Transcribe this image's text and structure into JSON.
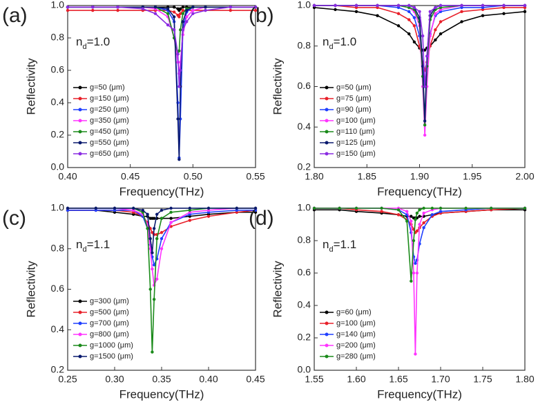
{
  "chart_data": [
    {
      "type": "line",
      "panel_label": "(a)",
      "annotation": [
        "n",
        "d",
        "=1.0"
      ],
      "x_label": "Frequency(THz)",
      "y_label": "Reflectivity",
      "legend": "lower left",
      "xlim": [
        0.4,
        0.55
      ],
      "xticks": [
        {
          "value": 0.4,
          "label": "0.40"
        },
        0.45,
        {
          "value": 0.5,
          "label": "0.50"
        },
        0.55
      ],
      "ylim": [
        0.0,
        1.0
      ],
      "yticks": [
        {
          "value": 0.0,
          "label": "0.0"
        },
        0.2,
        0.4,
        0.6,
        0.8,
        {
          "value": 1.0,
          "label": "1.0"
        }
      ],
      "x": [
        0.4,
        0.42,
        0.44,
        0.46,
        0.47,
        0.48,
        0.485,
        0.488,
        0.489,
        0.49,
        0.492,
        0.495,
        0.5,
        0.51,
        0.53,
        0.55
      ],
      "series": [
        {
          "name": "g=50 (μm)",
          "color": "#000000",
          "values": [
            0.99,
            0.99,
            0.99,
            0.99,
            0.99,
            0.99,
            0.99,
            0.98,
            0.97,
            0.98,
            0.99,
            0.99,
            0.99,
            0.99,
            0.99,
            0.99
          ]
        },
        {
          "name": "g=150 (μm)",
          "color": "#e8202a",
          "values": [
            0.97,
            0.97,
            0.97,
            0.97,
            0.97,
            0.97,
            0.96,
            0.94,
            0.93,
            0.95,
            0.97,
            0.97,
            0.97,
            0.97,
            0.97,
            0.97
          ]
        },
        {
          "name": "g=250 (μm)",
          "color": "#1f3fff",
          "values": [
            0.99,
            0.99,
            0.99,
            0.99,
            0.99,
            0.97,
            0.9,
            0.4,
            0.06,
            0.3,
            0.85,
            0.96,
            0.99,
            0.99,
            0.99,
            0.99
          ]
        },
        {
          "name": "g=350 (μm)",
          "color": "#ff33ff",
          "values": [
            0.99,
            0.99,
            0.99,
            0.99,
            0.98,
            0.93,
            0.8,
            0.65,
            0.58,
            0.65,
            0.82,
            0.93,
            0.97,
            0.99,
            0.99,
            0.99
          ]
        },
        {
          "name": "g=450 (μm)",
          "color": "#1a8a1a",
          "values": [
            0.99,
            0.99,
            0.99,
            0.99,
            0.99,
            0.95,
            0.8,
            0.7,
            0.72,
            0.85,
            0.95,
            0.98,
            0.99,
            0.99,
            0.99,
            0.99
          ]
        },
        {
          "name": "g=550 (μm)",
          "color": "#0a1a6e",
          "values": [
            0.99,
            0.99,
            0.99,
            0.99,
            0.99,
            0.98,
            0.93,
            0.3,
            0.05,
            0.5,
            0.9,
            0.97,
            0.99,
            0.99,
            0.99,
            0.99
          ]
        },
        {
          "name": "g=650 (μm)",
          "color": "#8a2be2",
          "values": [
            0.99,
            0.99,
            0.99,
            0.98,
            0.95,
            0.88,
            0.85,
            0.7,
            0.5,
            0.6,
            0.85,
            0.9,
            0.95,
            0.97,
            0.99,
            0.99
          ]
        }
      ]
    },
    {
      "type": "line",
      "panel_label": "(b)",
      "annotation": [
        "n",
        "d",
        "=1.0"
      ],
      "x_label": "Frequency(THz)",
      "y_label": "Reflectivity",
      "legend": "lower left",
      "xlim": [
        1.8,
        2.0
      ],
      "xticks": [
        {
          "value": 1.8,
          "label": "1.80"
        },
        1.85,
        {
          "value": 1.9,
          "label": "1.90"
        },
        1.95,
        {
          "value": 2.0,
          "label": "2.00"
        }
      ],
      "ylim": [
        0.2,
        1.0
      ],
      "yticks": [
        0.2,
        0.4,
        0.6,
        0.8,
        {
          "value": 1.0,
          "label": "1.0"
        }
      ],
      "x": [
        1.8,
        1.82,
        1.84,
        1.86,
        1.88,
        1.89,
        1.895,
        1.9,
        1.903,
        1.905,
        1.907,
        1.91,
        1.915,
        1.92,
        1.94,
        1.96,
        1.98,
        2.0
      ],
      "series": [
        {
          "name": "g=50 (μm)",
          "color": "#000000",
          "values": [
            0.99,
            0.98,
            0.97,
            0.95,
            0.9,
            0.86,
            0.82,
            0.79,
            0.78,
            0.78,
            0.79,
            0.8,
            0.83,
            0.86,
            0.92,
            0.95,
            0.96,
            0.97
          ]
        },
        {
          "name": "g=75 (μm)",
          "color": "#e8202a",
          "values": [
            1.0,
            1.0,
            0.99,
            0.99,
            0.96,
            0.93,
            0.9,
            0.8,
            0.72,
            0.68,
            0.72,
            0.8,
            0.88,
            0.92,
            0.97,
            0.98,
            0.99,
            0.99
          ]
        },
        {
          "name": "g=90 (μm)",
          "color": "#1f3fff",
          "values": [
            1.0,
            1.0,
            1.0,
            1.0,
            0.99,
            0.97,
            0.94,
            0.85,
            0.7,
            0.6,
            0.7,
            0.86,
            0.95,
            0.97,
            0.99,
            0.99,
            1.0,
            1.0
          ]
        },
        {
          "name": "g=100 (μm)",
          "color": "#ff33ff",
          "values": [
            1.0,
            1.0,
            1.0,
            1.0,
            1.0,
            0.99,
            0.97,
            0.9,
            0.6,
            0.36,
            0.6,
            0.85,
            0.96,
            0.98,
            1.0,
            1.0,
            1.0,
            1.0
          ]
        },
        {
          "name": "g=110 (μm)",
          "color": "#1a8a1a",
          "values": [
            1.0,
            1.0,
            1.0,
            1.0,
            1.0,
            0.99,
            0.98,
            0.92,
            0.65,
            0.41,
            0.7,
            0.93,
            0.98,
            0.99,
            1.0,
            1.0,
            1.0,
            1.0
          ]
        },
        {
          "name": "g=125 (μm)",
          "color": "#0a1a6e",
          "values": [
            1.0,
            1.0,
            1.0,
            1.0,
            1.0,
            1.0,
            0.99,
            0.94,
            0.7,
            0.43,
            0.75,
            0.95,
            0.99,
            1.0,
            1.0,
            1.0,
            1.0,
            1.0
          ]
        },
        {
          "name": "g=150 (μm)",
          "color": "#8a2be2",
          "values": [
            1.0,
            1.0,
            1.0,
            1.0,
            1.0,
            1.0,
            0.99,
            0.97,
            0.85,
            0.6,
            0.75,
            0.97,
            0.99,
            1.0,
            1.0,
            1.0,
            1.0,
            1.0
          ]
        }
      ]
    },
    {
      "type": "line",
      "panel_label": "(c)",
      "annotation": [
        "n",
        "d",
        "=1.1"
      ],
      "x_label": "Frequency(THz)",
      "y_label": "Reflectivity",
      "legend": "lower left",
      "xlim": [
        0.25,
        0.45
      ],
      "xticks": [
        0.25,
        {
          "value": 0.3,
          "label": "0.30"
        },
        0.35,
        {
          "value": 0.4,
          "label": "0.40"
        },
        0.45
      ],
      "ylim": [
        0.2,
        1.0
      ],
      "yticks": [
        0.2,
        0.4,
        0.6,
        0.8,
        {
          "value": 1.0,
          "label": "1.0"
        }
      ],
      "x": [
        0.25,
        0.28,
        0.3,
        0.32,
        0.33,
        0.335,
        0.338,
        0.34,
        0.342,
        0.345,
        0.35,
        0.36,
        0.38,
        0.4,
        0.43,
        0.45
      ],
      "series": [
        {
          "name": "g=300 (μm)",
          "color": "#000000",
          "values": [
            0.99,
            0.99,
            0.98,
            0.97,
            0.96,
            0.96,
            0.95,
            0.95,
            0.95,
            0.95,
            0.95,
            0.95,
            0.96,
            0.97,
            0.98,
            0.98
          ]
        },
        {
          "name": "g=500 (μm)",
          "color": "#e8202a",
          "values": [
            0.99,
            0.99,
            0.99,
            0.98,
            0.96,
            0.93,
            0.9,
            0.88,
            0.87,
            0.87,
            0.88,
            0.91,
            0.94,
            0.96,
            0.98,
            0.99
          ]
        },
        {
          "name": "g=700 (μm)",
          "color": "#1f3fff",
          "values": [
            0.99,
            0.99,
            0.99,
            0.99,
            0.96,
            0.9,
            0.82,
            0.76,
            0.72,
            0.75,
            0.85,
            0.93,
            0.97,
            0.98,
            0.99,
            0.99
          ]
        },
        {
          "name": "g=800 (μm)",
          "color": "#ff33ff",
          "values": [
            1.0,
            1.0,
            1.0,
            0.99,
            0.97,
            0.92,
            0.8,
            0.7,
            0.62,
            0.65,
            0.8,
            0.93,
            0.98,
            0.99,
            1.0,
            1.0
          ]
        },
        {
          "name": "g=1000 (μm)",
          "color": "#1a8a1a",
          "values": [
            1.0,
            1.0,
            1.0,
            1.0,
            0.98,
            0.9,
            0.6,
            0.29,
            0.55,
            0.85,
            0.95,
            0.98,
            0.99,
            1.0,
            1.0,
            1.0
          ]
        },
        {
          "name": "g=1500 (μm)",
          "color": "#0a1a6e",
          "values": [
            1.0,
            1.0,
            1.0,
            1.0,
            0.99,
            0.97,
            0.85,
            0.78,
            0.9,
            0.97,
            0.99,
            1.0,
            1.0,
            1.0,
            1.0,
            1.0
          ]
        }
      ]
    },
    {
      "type": "line",
      "panel_label": "(d)",
      "annotation": [
        "n",
        "d",
        "=1.1"
      ],
      "x_label": "Frequency(THz)",
      "y_label": "Reflectivity",
      "legend": "lower left",
      "xlim": [
        1.55,
        1.8
      ],
      "xticks": [
        1.55,
        {
          "value": 1.6,
          "label": "1.60"
        },
        1.65,
        {
          "value": 1.7,
          "label": "1.70"
        },
        1.75,
        {
          "value": 1.8,
          "label": "1.80"
        }
      ],
      "ylim": [
        0.0,
        1.0
      ],
      "yticks": [
        {
          "value": 0.0,
          "label": "0.0"
        },
        0.2,
        0.4,
        0.6,
        0.8,
        {
          "value": 1.0,
          "label": "1.0"
        }
      ],
      "x": [
        1.55,
        1.58,
        1.6,
        1.63,
        1.65,
        1.66,
        1.665,
        1.668,
        1.67,
        1.672,
        1.675,
        1.68,
        1.69,
        1.7,
        1.73,
        1.76,
        1.8
      ],
      "series": [
        {
          "name": "g=60 (μm)",
          "color": "#000000",
          "values": [
            0.99,
            0.99,
            0.98,
            0.97,
            0.96,
            0.95,
            0.95,
            0.94,
            0.94,
            0.94,
            0.95,
            0.95,
            0.96,
            0.97,
            0.98,
            0.99,
            0.99
          ]
        },
        {
          "name": "g=100 (μm)",
          "color": "#e8202a",
          "values": [
            1.0,
            1.0,
            0.99,
            0.98,
            0.96,
            0.93,
            0.9,
            0.87,
            0.85,
            0.86,
            0.88,
            0.91,
            0.95,
            0.97,
            0.98,
            0.99,
            1.0
          ]
        },
        {
          "name": "g=140 (μm)",
          "color": "#1f3fff",
          "values": [
            1.0,
            1.0,
            1.0,
            1.0,
            0.99,
            0.96,
            0.85,
            0.7,
            0.66,
            0.68,
            0.78,
            0.88,
            0.96,
            0.98,
            0.99,
            1.0,
            1.0
          ]
        },
        {
          "name": "g=200 (μm)",
          "color": "#ff33ff",
          "values": [
            1.0,
            1.0,
            1.0,
            1.0,
            1.0,
            0.98,
            0.92,
            0.6,
            0.1,
            0.6,
            0.9,
            0.97,
            0.99,
            1.0,
            1.0,
            1.0,
            1.0
          ]
        },
        {
          "name": "g=280 (μm)",
          "color": "#1a8a1a",
          "values": [
            1.0,
            1.0,
            1.0,
            1.0,
            0.99,
            0.92,
            0.55,
            0.8,
            0.93,
            0.97,
            0.99,
            1.0,
            1.0,
            1.0,
            1.0,
            1.0,
            1.0
          ]
        }
      ]
    }
  ]
}
